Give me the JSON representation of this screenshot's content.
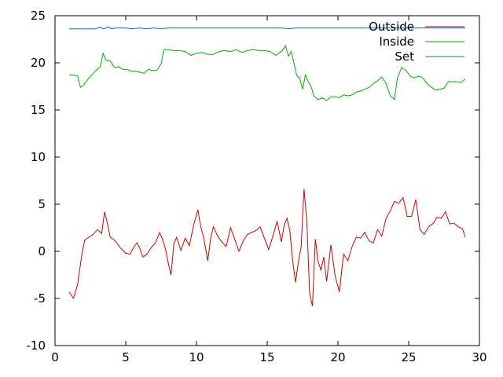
{
  "chart_data": {
    "type": "line",
    "xlim": [
      0,
      30
    ],
    "ylim": [
      -10,
      25
    ],
    "x_ticks": [
      0,
      5,
      10,
      15,
      20,
      25,
      30
    ],
    "y_ticks": [
      -10,
      -5,
      0,
      5,
      10,
      15,
      20,
      25
    ],
    "x_tick_labels": [
      "0",
      "5",
      "10",
      "15",
      "20",
      "25",
      "30"
    ],
    "y_tick_labels": [
      "-10",
      "-5",
      "0",
      "5",
      "10",
      "15",
      "20",
      "25"
    ],
    "grid": false,
    "legend_position": "top-right",
    "series": [
      {
        "name": "Outside",
        "color": "#cc0000",
        "x": [
          1.0,
          1.3,
          1.6,
          1.9,
          2.1,
          2.4,
          2.7,
          3.0,
          3.3,
          3.5,
          3.7,
          3.9,
          4.2,
          4.6,
          5.0,
          5.3,
          5.6,
          5.8,
          6.0,
          6.2,
          6.5,
          6.8,
          7.1,
          7.4,
          7.6,
          7.8,
          8.0,
          8.2,
          8.4,
          8.6,
          8.9,
          9.2,
          9.5,
          9.8,
          10.1,
          10.3,
          10.5,
          10.8,
          11.0,
          11.2,
          11.5,
          11.8,
          12.1,
          12.4,
          12.7,
          13.0,
          13.3,
          13.6,
          13.9,
          14.2,
          14.5,
          14.8,
          15.1,
          15.4,
          15.7,
          16.0,
          16.2,
          16.4,
          16.6,
          16.8,
          17.0,
          17.2,
          17.4,
          17.6,
          17.8,
          18.0,
          18.2,
          18.4,
          18.6,
          18.8,
          19.0,
          19.2,
          19.5,
          19.8,
          20.1,
          20.4,
          20.7,
          21.0,
          21.3,
          21.6,
          21.9,
          22.2,
          22.5,
          22.8,
          23.1,
          23.4,
          23.7,
          24.0,
          24.3,
          24.6,
          24.9,
          25.2,
          25.5,
          25.8,
          26.1,
          26.4,
          26.7,
          27.0,
          27.3,
          27.6,
          27.9,
          28.2,
          28.5,
          28.8,
          29.0
        ],
        "values": [
          -4.3,
          -5.0,
          -3.5,
          -0.3,
          1.2,
          1.5,
          1.8,
          2.3,
          1.9,
          4.2,
          3.0,
          1.5,
          1.2,
          0.4,
          -0.2,
          -0.3,
          0.5,
          0.9,
          0.3,
          -0.6,
          -0.3,
          0.4,
          0.9,
          2.0,
          1.3,
          0.3,
          -1.2,
          -2.5,
          0.8,
          1.5,
          0.1,
          1.4,
          0.6,
          2.8,
          4.4,
          2.6,
          1.5,
          -1.0,
          1.4,
          2.6,
          1.6,
          1.0,
          0.5,
          2.5,
          1.3,
          0.0,
          1.1,
          1.8,
          2.0,
          2.2,
          2.6,
          1.4,
          0.2,
          1.6,
          3.2,
          1.0,
          2.8,
          3.5,
          2.2,
          -1.0,
          -3.3,
          -1.2,
          0.5,
          6.6,
          3.2,
          -4.5,
          -5.8,
          1.3,
          -1.1,
          -2.0,
          -0.6,
          -3.2,
          0.7,
          -2.6,
          -4.3,
          -0.3,
          -1.0,
          0.5,
          1.5,
          1.4,
          2.0,
          1.1,
          0.9,
          2.3,
          1.6,
          3.5,
          4.3,
          5.3,
          5.1,
          5.7,
          3.7,
          3.7,
          5.5,
          2.3,
          1.8,
          2.6,
          2.9,
          3.6,
          3.5,
          4.2,
          2.9,
          3.0,
          2.6,
          2.4,
          1.5
        ]
      },
      {
        "name": "Inside",
        "color": "#00aa00",
        "x": [
          1.0,
          1.3,
          1.6,
          1.8,
          2.0,
          2.3,
          2.6,
          2.9,
          3.2,
          3.4,
          3.6,
          3.9,
          4.2,
          4.5,
          4.8,
          5.1,
          5.4,
          5.7,
          6.0,
          6.3,
          6.6,
          6.9,
          7.2,
          7.5,
          7.7,
          8.0,
          8.4,
          8.8,
          9.2,
          9.6,
          10.0,
          10.4,
          10.8,
          11.2,
          11.6,
          12.0,
          12.4,
          12.8,
          13.2,
          13.6,
          14.0,
          14.4,
          14.8,
          15.2,
          15.6,
          16.0,
          16.3,
          16.5,
          16.7,
          16.9,
          17.1,
          17.3,
          17.5,
          17.7,
          17.9,
          18.1,
          18.3,
          18.6,
          18.9,
          19.2,
          19.5,
          19.8,
          20.1,
          20.4,
          20.7,
          21.0,
          21.3,
          21.6,
          21.9,
          22.2,
          22.5,
          22.8,
          23.1,
          23.4,
          23.7,
          24.0,
          24.2,
          24.5,
          24.8,
          25.1,
          25.4,
          25.7,
          26.0,
          26.3,
          26.6,
          26.9,
          27.2,
          27.5,
          27.8,
          28.1,
          28.4,
          28.7,
          29.0
        ],
        "values": [
          18.7,
          18.7,
          18.6,
          17.4,
          17.6,
          18.2,
          18.7,
          19.2,
          19.6,
          21.0,
          20.3,
          20.2,
          19.5,
          19.6,
          19.3,
          19.3,
          19.1,
          19.1,
          19.0,
          18.9,
          19.3,
          19.2,
          19.2,
          19.9,
          21.4,
          21.4,
          21.3,
          21.3,
          21.2,
          20.8,
          21.0,
          21.1,
          20.9,
          20.9,
          21.2,
          21.3,
          21.2,
          21.4,
          21.1,
          21.3,
          21.4,
          21.3,
          21.3,
          21.2,
          20.8,
          21.2,
          21.8,
          20.7,
          21.2,
          19.9,
          18.6,
          18.4,
          17.2,
          18.7,
          18.0,
          17.5,
          16.5,
          16.1,
          16.3,
          16.0,
          16.4,
          16.4,
          16.3,
          16.6,
          16.5,
          16.6,
          16.9,
          17.0,
          17.2,
          17.4,
          17.8,
          18.1,
          18.5,
          17.8,
          16.5,
          16.1,
          18.4,
          19.5,
          19.2,
          18.6,
          18.4,
          18.6,
          18.4,
          17.8,
          17.4,
          17.1,
          17.2,
          17.3,
          18.0,
          18.0,
          18.0,
          17.9,
          18.3
        ]
      },
      {
        "name": "Set",
        "color": "#0070c0",
        "x": [
          1.0,
          1.5,
          2.0,
          2.5,
          2.9,
          3.0,
          3.2,
          3.4,
          3.6,
          3.8,
          4.0,
          4.3,
          4.6,
          5.0,
          5.5,
          6.0,
          6.5,
          7.0,
          7.5,
          8.0,
          9.0,
          10.0,
          11.0,
          12.0,
          13.0,
          14.0,
          15.0,
          16.0,
          16.5,
          17.0,
          17.5,
          18.0,
          19.0,
          20.0,
          21.0,
          22.0,
          23.0,
          24.0,
          25.0,
          26.0,
          27.0,
          28.0,
          29.0
        ],
        "values": [
          23.6,
          23.6,
          23.6,
          23.6,
          23.6,
          23.7,
          23.8,
          23.6,
          23.7,
          23.8,
          23.6,
          23.7,
          23.7,
          23.7,
          23.6,
          23.7,
          23.6,
          23.7,
          23.6,
          23.7,
          23.7,
          23.7,
          23.7,
          23.7,
          23.7,
          23.7,
          23.7,
          23.7,
          23.6,
          23.7,
          23.7,
          23.7,
          23.7,
          23.7,
          23.7,
          23.7,
          23.7,
          23.7,
          23.7,
          23.7,
          23.7,
          23.7,
          23.7
        ]
      }
    ]
  }
}
